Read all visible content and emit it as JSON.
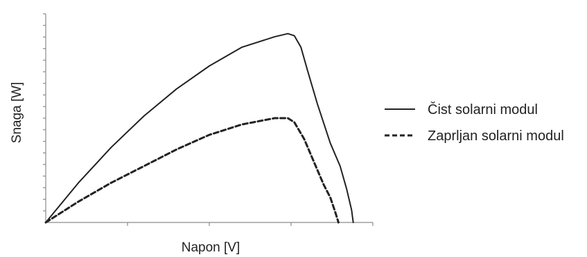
{
  "chart_data": {
    "type": "line",
    "title": "",
    "xlabel": "Napon [V]",
    "ylabel": "Snaga [W]",
    "xlim": [
      0,
      1
    ],
    "ylim": [
      0,
      1
    ],
    "x_ticks": 4,
    "y_ticks": 18,
    "grid": false,
    "legend_position": "right",
    "series": [
      {
        "name": "Čist solarni modul",
        "style": "solid",
        "color": "#222222",
        "points": [
          [
            0.0,
            0.0
          ],
          [
            0.1,
            0.19
          ],
          [
            0.2,
            0.36
          ],
          [
            0.3,
            0.51
          ],
          [
            0.4,
            0.64
          ],
          [
            0.5,
            0.75
          ],
          [
            0.6,
            0.84
          ],
          [
            0.7,
            0.89
          ],
          [
            0.74,
            0.905
          ],
          [
            0.76,
            0.895
          ],
          [
            0.78,
            0.84
          ],
          [
            0.8,
            0.73
          ],
          [
            0.83,
            0.57
          ],
          [
            0.87,
            0.38
          ],
          [
            0.9,
            0.27
          ],
          [
            0.92,
            0.16
          ],
          [
            0.935,
            0.06
          ],
          [
            0.94,
            0.0
          ]
        ]
      },
      {
        "name": "Zaprljan solarni modul",
        "style": "dashed",
        "color": "#222222",
        "points": [
          [
            0.0,
            0.0
          ],
          [
            0.1,
            0.1
          ],
          [
            0.2,
            0.19
          ],
          [
            0.3,
            0.27
          ],
          [
            0.4,
            0.35
          ],
          [
            0.5,
            0.42
          ],
          [
            0.6,
            0.47
          ],
          [
            0.7,
            0.5
          ],
          [
            0.74,
            0.5
          ],
          [
            0.76,
            0.48
          ],
          [
            0.79,
            0.4
          ],
          [
            0.82,
            0.29
          ],
          [
            0.85,
            0.18
          ],
          [
            0.87,
            0.12
          ],
          [
            0.885,
            0.05
          ],
          [
            0.895,
            0.0
          ]
        ]
      }
    ]
  }
}
